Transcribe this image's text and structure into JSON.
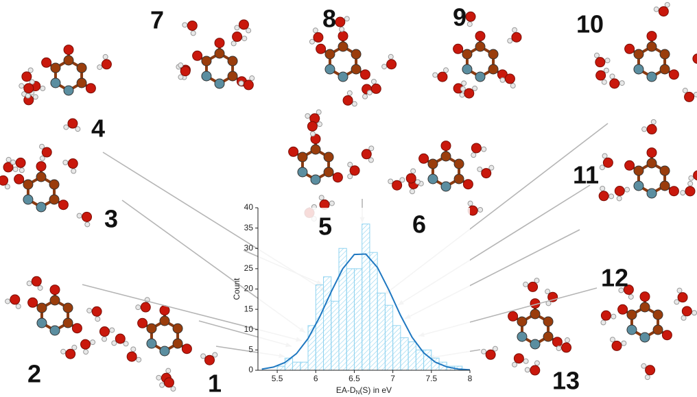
{
  "chart_data": {
    "type": "histogram",
    "bins": [
      5.5,
      5.6,
      5.7,
      5.8,
      5.9,
      6.0,
      6.1,
      6.2,
      6.3,
      6.4,
      6.5,
      6.6,
      6.7,
      6.8,
      6.9,
      7.0,
      7.1,
      7.2,
      7.3,
      7.4,
      7.5,
      7.6,
      7.7,
      7.8,
      7.9
    ],
    "values": [
      1,
      3,
      2,
      2,
      11,
      21,
      23,
      17,
      30,
      25,
      25,
      36,
      29,
      19,
      16,
      11,
      8,
      7,
      5,
      5,
      3,
      2,
      1,
      1
    ],
    "color": "#8fd3f0",
    "fit": {
      "color": "#1f78c1",
      "x": [
        5.3,
        5.45,
        5.6,
        5.75,
        5.9,
        6.05,
        6.2,
        6.35,
        6.5,
        6.65,
        6.8,
        6.95,
        7.1,
        7.25,
        7.4,
        7.55,
        7.7,
        7.85,
        8.0
      ],
      "y": [
        0.28,
        0.78,
        1.9,
        4.1,
        7.8,
        13.1,
        19.3,
        25.0,
        28.5,
        28.6,
        25.3,
        19.7,
        13.5,
        8.1,
        4.3,
        2.0,
        0.83,
        0.3,
        0.1
      ]
    },
    "xlabel": [
      "EA-D",
      "N",
      "(S) in eV"
    ],
    "ylabel": "Count",
    "xlim": [
      5.25,
      8
    ],
    "xticks": [
      5.5,
      6,
      6.5,
      7,
      7.5,
      8
    ],
    "ylim": [
      0,
      40
    ],
    "yticks": [
      0,
      5,
      10,
      15,
      20,
      25,
      30,
      35,
      40
    ],
    "structure_labels": [
      "1",
      "2",
      "3",
      "4",
      "5",
      "6",
      "7",
      "8",
      "9",
      "10",
      "11",
      "12",
      "13"
    ]
  }
}
